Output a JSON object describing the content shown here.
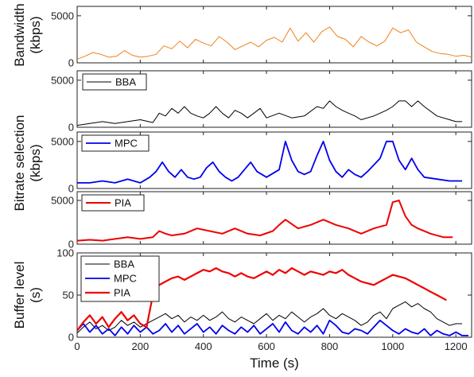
{
  "chart_data": [
    {
      "type": "line",
      "name": "bandwidth",
      "ylabel": [
        "Bandwidth",
        "(kbps)"
      ],
      "ylim": [
        0,
        6000
      ],
      "yticks": [
        0,
        5000
      ],
      "xlim": [
        0,
        1250
      ],
      "legend": [],
      "series": [
        {
          "name": "",
          "color": "#f07f1a",
          "width": 1,
          "x": [
            0,
            25,
            50,
            75,
            100,
            125,
            150,
            175,
            200,
            225,
            250,
            275,
            300,
            325,
            350,
            375,
            400,
            425,
            450,
            475,
            500,
            525,
            550,
            575,
            600,
            625,
            650,
            675,
            700,
            725,
            750,
            775,
            800,
            825,
            850,
            875,
            900,
            925,
            950,
            975,
            1000,
            1025,
            1050,
            1075,
            1100,
            1125,
            1150,
            1175,
            1200,
            1225,
            1250
          ],
          "values": [
            400,
            700,
            1100,
            900,
            600,
            700,
            1300,
            800,
            600,
            700,
            900,
            1800,
            1500,
            2300,
            1600,
            2500,
            2100,
            1800,
            2800,
            2200,
            1400,
            1800,
            2200,
            1700,
            2400,
            2700,
            2200,
            3700,
            2300,
            3200,
            2200,
            3300,
            3800,
            2800,
            2500,
            1700,
            2800,
            2200,
            1800,
            2300,
            3700,
            3200,
            3500,
            2200,
            1700,
            1200,
            1000,
            900,
            700,
            800,
            600
          ]
        }
      ]
    },
    {
      "type": "line",
      "name": "bitrate-bba",
      "ylim": [
        0,
        6000
      ],
      "yticks": [
        0,
        5000
      ],
      "xlim": [
        0,
        1250
      ],
      "legend": [
        "BBA"
      ],
      "series": [
        {
          "name": "BBA",
          "color": "#000000",
          "width": 1,
          "x": [
            0,
            40,
            80,
            120,
            160,
            200,
            240,
            260,
            280,
            300,
            320,
            340,
            360,
            380,
            400,
            420,
            440,
            460,
            480,
            500,
            520,
            540,
            560,
            580,
            600,
            640,
            680,
            720,
            760,
            780,
            800,
            820,
            840,
            860,
            880,
            900,
            940,
            980,
            1000,
            1020,
            1040,
            1060,
            1080,
            1100,
            1140,
            1180,
            1200,
            1220
          ],
          "values": [
            200,
            400,
            600,
            400,
            600,
            800,
            500,
            1500,
            1200,
            2000,
            1500,
            2200,
            1500,
            1200,
            1000,
            1500,
            2200,
            1500,
            1000,
            1800,
            1500,
            1000,
            1500,
            2000,
            1000,
            1500,
            1000,
            1200,
            2200,
            2000,
            2800,
            2200,
            1800,
            1500,
            1200,
            800,
            1200,
            1800,
            2200,
            2800,
            2800,
            2200,
            2800,
            2200,
            1200,
            800,
            600,
            600
          ]
        }
      ]
    },
    {
      "type": "line",
      "name": "bitrate-mpc",
      "ylabel": [
        "Bitrate selection",
        "(kbps)"
      ],
      "ylim": [
        0,
        6000
      ],
      "yticks": [
        0,
        5000
      ],
      "xlim": [
        0,
        1250
      ],
      "legend": [
        "MPC"
      ],
      "series": [
        {
          "name": "MPC",
          "color": "#0000ee",
          "width": 1.8,
          "x": [
            0,
            40,
            80,
            120,
            160,
            200,
            230,
            250,
            270,
            290,
            310,
            330,
            350,
            370,
            390,
            410,
            430,
            450,
            470,
            490,
            510,
            530,
            550,
            570,
            600,
            640,
            660,
            680,
            700,
            720,
            740,
            760,
            780,
            800,
            820,
            840,
            860,
            880,
            900,
            920,
            960,
            980,
            1000,
            1020,
            1040,
            1060,
            1080,
            1100,
            1140,
            1180,
            1220
          ],
          "values": [
            600,
            600,
            800,
            600,
            1000,
            600,
            1200,
            1800,
            2800,
            1800,
            1200,
            2000,
            1200,
            1000,
            1200,
            2200,
            2800,
            1800,
            1200,
            800,
            1200,
            2000,
            2800,
            1800,
            1200,
            2000,
            5000,
            3000,
            1800,
            1500,
            1800,
            3500,
            5000,
            3000,
            1800,
            1200,
            2000,
            1500,
            1200,
            1800,
            3200,
            5000,
            5000,
            3000,
            2000,
            3200,
            2000,
            1200,
            1000,
            800,
            800
          ]
        }
      ]
    },
    {
      "type": "line",
      "name": "bitrate-pia",
      "ylim": [
        0,
        6000
      ],
      "yticks": [
        0,
        5000
      ],
      "xlim": [
        0,
        1250
      ],
      "legend": [
        "PIA"
      ],
      "series": [
        {
          "name": "PIA",
          "color": "#ee0000",
          "width": 2,
          "x": [
            0,
            40,
            80,
            120,
            160,
            200,
            240,
            260,
            280,
            300,
            340,
            380,
            420,
            460,
            500,
            540,
            580,
            620,
            640,
            660,
            700,
            740,
            780,
            820,
            860,
            900,
            940,
            980,
            1000,
            1020,
            1040,
            1060,
            1080,
            1120,
            1160,
            1190
          ],
          "values": [
            400,
            500,
            400,
            600,
            800,
            600,
            800,
            1500,
            1200,
            1000,
            1200,
            1800,
            1500,
            1200,
            1800,
            1200,
            1000,
            1500,
            2200,
            2800,
            1800,
            2200,
            2800,
            2200,
            1800,
            1200,
            1800,
            2200,
            4800,
            5000,
            3200,
            2200,
            1800,
            1200,
            800,
            800
          ]
        }
      ]
    },
    {
      "type": "line",
      "name": "buffer-level",
      "ylabel": [
        "Buffer level",
        "(s)"
      ],
      "xlabel": "Time (s)",
      "ylim": [
        0,
        100
      ],
      "yticks": [
        0,
        50,
        100
      ],
      "xlim": [
        0,
        1250
      ],
      "xticks": [
        0,
        200,
        400,
        600,
        800,
        1000,
        1200
      ],
      "legend": [
        "BBA",
        "MPC",
        "PIA"
      ],
      "series": [
        {
          "name": "BBA",
          "color": "#000000",
          "width": 1,
          "x": [
            0,
            20,
            40,
            60,
            80,
            100,
            120,
            140,
            160,
            180,
            200,
            220,
            240,
            260,
            280,
            300,
            320,
            340,
            360,
            380,
            400,
            420,
            440,
            460,
            480,
            500,
            520,
            540,
            560,
            580,
            600,
            620,
            640,
            660,
            680,
            700,
            720,
            740,
            760,
            780,
            800,
            820,
            840,
            860,
            880,
            900,
            920,
            940,
            960,
            980,
            1000,
            1020,
            1040,
            1060,
            1080,
            1100,
            1120,
            1140,
            1160,
            1180,
            1200,
            1220
          ],
          "values": [
            5,
            12,
            18,
            10,
            14,
            8,
            12,
            20,
            14,
            18,
            12,
            16,
            20,
            24,
            28,
            22,
            26,
            18,
            24,
            20,
            26,
            20,
            24,
            30,
            22,
            18,
            24,
            20,
            16,
            22,
            28,
            20,
            26,
            22,
            30,
            24,
            18,
            24,
            28,
            34,
            26,
            22,
            28,
            24,
            20,
            14,
            18,
            26,
            30,
            22,
            34,
            38,
            42,
            36,
            40,
            34,
            30,
            22,
            18,
            14,
            16,
            16
          ]
        },
        {
          "name": "MPC",
          "color": "#0000ee",
          "width": 1.8,
          "x": [
            0,
            20,
            40,
            60,
            80,
            100,
            120,
            140,
            160,
            180,
            200,
            220,
            240,
            260,
            280,
            300,
            320,
            340,
            360,
            380,
            400,
            420,
            440,
            460,
            480,
            500,
            520,
            540,
            560,
            580,
            600,
            620,
            640,
            660,
            680,
            700,
            720,
            740,
            760,
            780,
            800,
            820,
            840,
            860,
            880,
            900,
            920,
            940,
            960,
            980,
            1000,
            1020,
            1040,
            1060,
            1080,
            1100,
            1120,
            1140,
            1160,
            1180,
            1200,
            1220,
            1240
          ],
          "values": [
            8,
            16,
            6,
            14,
            4,
            10,
            2,
            12,
            4,
            14,
            6,
            12,
            4,
            8,
            16,
            6,
            14,
            4,
            10,
            16,
            6,
            12,
            4,
            14,
            8,
            4,
            12,
            6,
            14,
            4,
            10,
            16,
            6,
            18,
            8,
            4,
            12,
            6,
            14,
            4,
            20,
            14,
            6,
            4,
            10,
            8,
            4,
            12,
            20,
            14,
            8,
            4,
            10,
            6,
            4,
            10,
            2,
            8,
            4,
            2,
            6,
            2,
            2
          ]
        },
        {
          "name": "PIA",
          "color": "#ee0000",
          "width": 2.2,
          "x": [
            0,
            20,
            40,
            60,
            80,
            100,
            120,
            140,
            160,
            180,
            200,
            220,
            240,
            260,
            280,
            300,
            320,
            340,
            360,
            380,
            400,
            420,
            440,
            460,
            480,
            500,
            520,
            540,
            560,
            580,
            600,
            620,
            640,
            660,
            680,
            700,
            720,
            740,
            760,
            780,
            800,
            820,
            840,
            860,
            880,
            900,
            920,
            940,
            960,
            980,
            1000,
            1020,
            1040,
            1060,
            1080,
            1100,
            1120,
            1140,
            1160,
            1170
          ],
          "values": [
            8,
            18,
            26,
            16,
            24,
            12,
            22,
            30,
            20,
            26,
            16,
            12,
            50,
            62,
            66,
            70,
            72,
            68,
            72,
            76,
            80,
            78,
            82,
            78,
            76,
            72,
            76,
            72,
            70,
            74,
            78,
            74,
            80,
            76,
            82,
            78,
            74,
            78,
            76,
            74,
            78,
            76,
            80,
            74,
            70,
            66,
            64,
            62,
            66,
            70,
            74,
            72,
            70,
            66,
            62,
            58,
            54,
            50,
            46,
            44
          ]
        }
      ]
    }
  ]
}
